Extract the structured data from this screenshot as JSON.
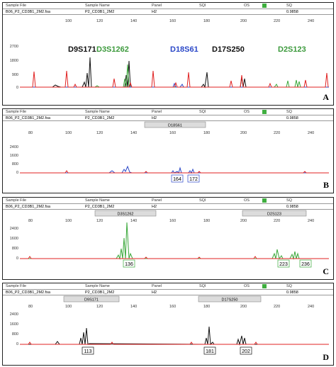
{
  "header": {
    "labels": {
      "sample_file": "Sample File",
      "sample_name": "Sample Name",
      "panel": "Panel",
      "sqi": "SQI",
      "os": "OS",
      "sq": "SQ"
    },
    "values": {
      "sample_file": "B06_P2_CD3B1_2M2.fsa",
      "sample_name": "P2_CD3B1_2M2",
      "panel": "H2",
      "sq": "0.9858"
    },
    "qc_color": "#3fae3f"
  },
  "axis_ticks": [
    "80",
    "100",
    "120",
    "140",
    "160",
    "180",
    "200",
    "220",
    "240"
  ],
  "panels": [
    {
      "letter": "A",
      "y_ticks": [
        "2700",
        "1800",
        "900",
        "0"
      ],
      "markers": [
        {
          "text": "D9S171",
          "color": "#111111"
        },
        {
          "text": "D3S1262",
          "color": "#3c9a3c"
        },
        {
          "text": "D18S61",
          "color": "#2b48c8"
        },
        {
          "text": "D17S250",
          "color": "#111111"
        },
        {
          "text": "D2S123",
          "color": "#3c9a3c"
        }
      ]
    },
    {
      "letter": "B",
      "y_ticks": [
        "2400",
        "1600",
        "800",
        "0"
      ],
      "bins": [
        "D18S61"
      ],
      "alleles": [
        "164",
        "172"
      ]
    },
    {
      "letter": "C",
      "y_ticks": [
        "2400",
        "1600",
        "800",
        "0"
      ],
      "bins": [
        "D3S1262",
        "D2S123"
      ],
      "alleles": [
        "136",
        "223",
        "236"
      ]
    },
    {
      "letter": "D",
      "y_ticks": [
        "2400",
        "1600",
        "800",
        "0"
      ],
      "bins": [
        "D9S171",
        "D17S250"
      ],
      "alleles": [
        "113",
        "181",
        "202"
      ]
    }
  ],
  "colors": {
    "black": "#111111",
    "green": "#3aa83a",
    "blue": "#2b48c8",
    "red": "#e02222"
  }
}
